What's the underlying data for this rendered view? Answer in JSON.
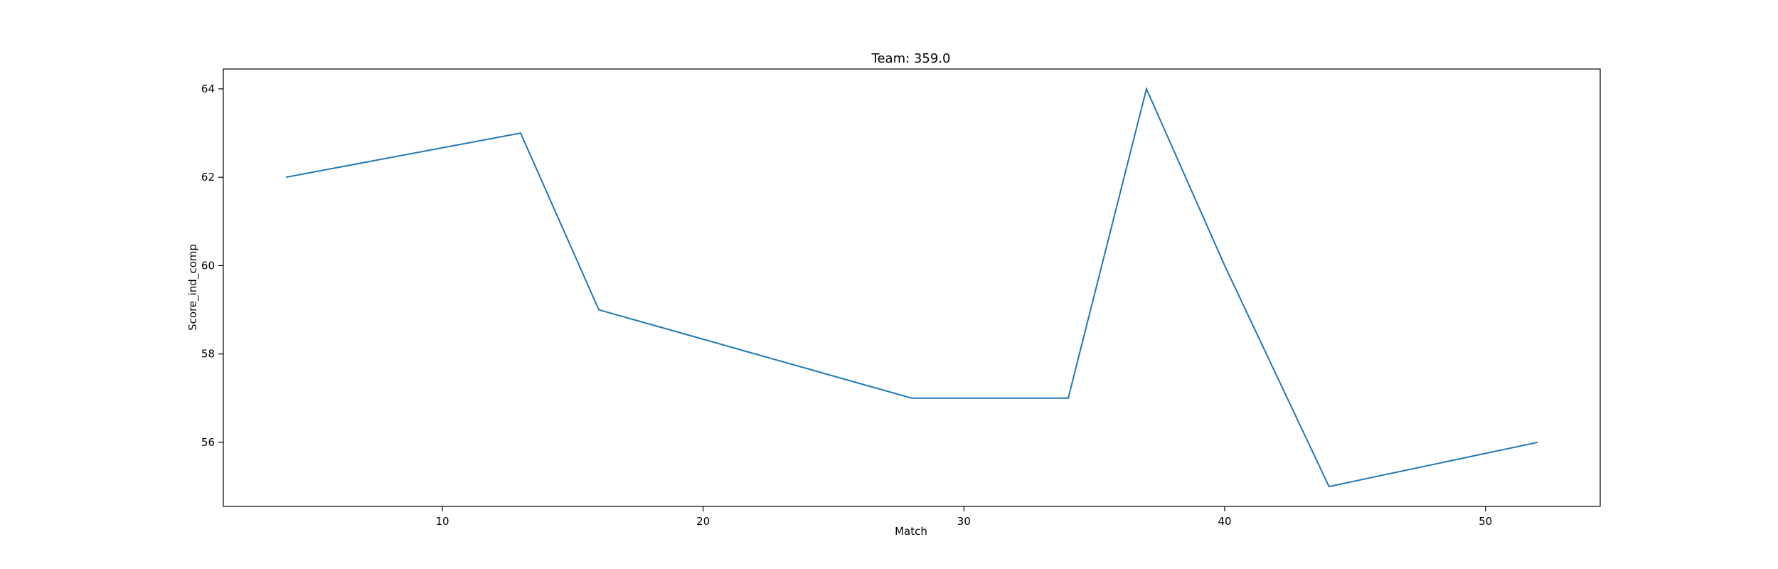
{
  "chart_data": {
    "type": "line",
    "title": "Team: 359.0",
    "xlabel": "Match",
    "ylabel": "Score_ind_comp",
    "xlim": [
      1.6,
      54.4
    ],
    "ylim": [
      54.55,
      64.45
    ],
    "xticks": [
      10,
      20,
      30,
      40,
      50
    ],
    "xtick_labels": [
      "10",
      "20",
      "30",
      "40",
      "50"
    ],
    "yticks": [
      56,
      58,
      60,
      62,
      64
    ],
    "ytick_labels": [
      "56",
      "58",
      "60",
      "62",
      "64"
    ],
    "grid": false,
    "series": [
      {
        "color": "#1f77b4",
        "x": [
          4,
          13,
          16,
          28,
          34,
          37,
          40,
          44,
          52
        ],
        "y": [
          62,
          63,
          59,
          57,
          57,
          64,
          60,
          55,
          56
        ]
      }
    ]
  }
}
